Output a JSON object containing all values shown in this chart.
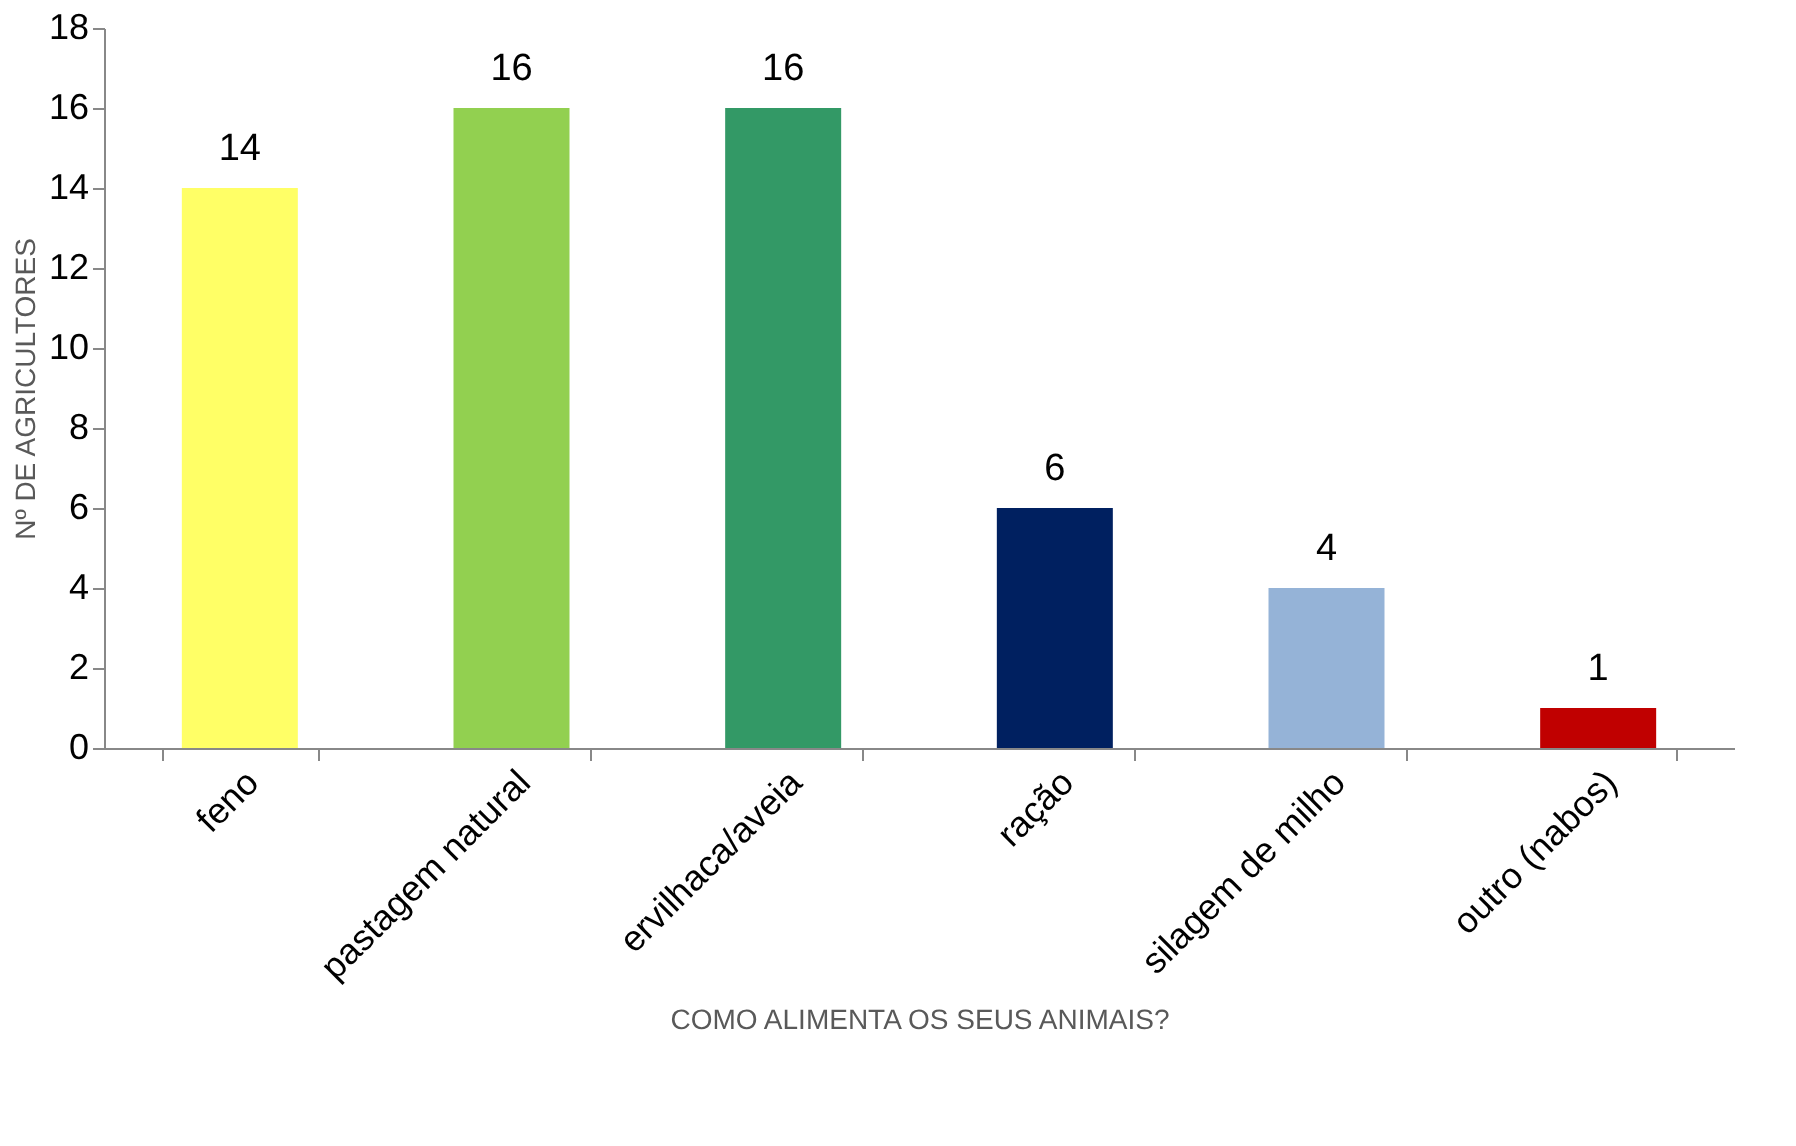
{
  "chart_data": {
    "type": "bar",
    "categories": [
      "feno",
      "pastagem natural",
      "ervilhaca/aveia",
      "ração",
      "silagem de milho",
      "outro (nabos)"
    ],
    "values": [
      14,
      16,
      16,
      6,
      4,
      1
    ],
    "colors": [
      "#ffff66",
      "#92d050",
      "#339966",
      "#002060",
      "#95b3d7",
      "#c00000"
    ],
    "xlabel": "COMO ALIMENTA OS SEUS ANIMAIS?",
    "ylabel": "Nº DE AGRICULTORES",
    "ylim": [
      0,
      18
    ],
    "yticks": [
      0,
      2,
      4,
      6,
      8,
      10,
      12,
      14,
      16,
      18
    ],
    "data_labels": true,
    "grid": false,
    "legend": false
  }
}
